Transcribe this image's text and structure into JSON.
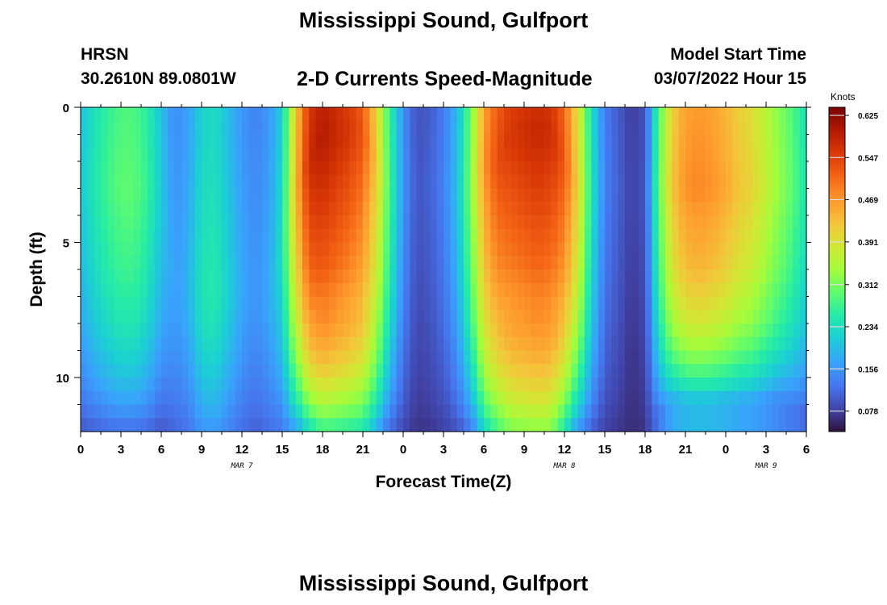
{
  "title": "Mississippi Sound, Gulfport",
  "footer_title": "Mississippi Sound, Gulfport",
  "station": "HRSN",
  "coordinates": "30.2610N  89.0801W",
  "model_start_label": "Model Start Time",
  "model_start_value": "03/07/2022 Hour 15",
  "chart_data": {
    "type": "heatmap",
    "title": "2-D Currents Speed-Magnitude",
    "xlabel": "Forecast Time(Z)",
    "ylabel": "Depth (ft)",
    "colorbar_label": "Knots",
    "x_range_hours": [
      0,
      54
    ],
    "y_range_ft": [
      0,
      12
    ],
    "x_tick_hours": [
      0,
      3,
      6,
      9,
      12,
      15,
      18,
      21,
      24,
      27,
      30,
      33,
      36,
      39,
      42,
      45,
      48,
      51,
      54
    ],
    "x_tick_labels": [
      "0",
      "3",
      "6",
      "9",
      "12",
      "15",
      "18",
      "21",
      "0",
      "3",
      "6",
      "9",
      "12",
      "15",
      "18",
      "21",
      "0",
      "3",
      "6"
    ],
    "y_tick_values": [
      0,
      5,
      10
    ],
    "y_tick_labels": [
      "0",
      "5",
      "10"
    ],
    "date_labels": [
      {
        "hour": 12,
        "text": "MAR 7"
      },
      {
        "hour": 36,
        "text": "MAR 8"
      },
      {
        "hour": 51,
        "text": "MAR 9"
      }
    ],
    "colorbar_range": [
      0.04,
      0.64
    ],
    "colorbar_ticks": [
      "0.625",
      "0.547",
      "0.469",
      "0.391",
      "0.312",
      "0.234",
      "0.156",
      "0.078"
    ],
    "colorbar_tick_values": [
      0.625,
      0.547,
      0.469,
      0.391,
      0.312,
      0.234,
      0.156,
      0.078
    ],
    "surface_speed_knots_by_hour": [
      0.21,
      0.25,
      0.28,
      0.3,
      0.3,
      0.27,
      0.21,
      0.17,
      0.19,
      0.25,
      0.26,
      0.22,
      0.18,
      0.16,
      0.18,
      0.24,
      0.45,
      0.58,
      0.6,
      0.58,
      0.56,
      0.53,
      0.43,
      0.28,
      0.16,
      0.1,
      0.11,
      0.14,
      0.2,
      0.32,
      0.48,
      0.54,
      0.56,
      0.57,
      0.58,
      0.57,
      0.53,
      0.42,
      0.25,
      0.14,
      0.11,
      0.08,
      0.1,
      0.3,
      0.44,
      0.49,
      0.5,
      0.49,
      0.47,
      0.44,
      0.42,
      0.38,
      0.34,
      0.3,
      0.25
    ],
    "peak_depth_ft_by_hour": [
      3,
      3,
      3,
      3,
      3,
      3,
      3,
      7,
      7,
      7,
      7,
      7,
      7,
      7,
      7,
      5,
      3,
      2,
      1,
      1,
      1,
      1,
      2,
      3,
      3,
      3,
      3,
      3,
      3,
      3,
      2,
      2,
      1,
      1,
      1,
      1,
      2,
      3,
      3,
      3,
      3,
      3,
      3,
      3,
      3,
      3,
      3,
      3,
      3,
      3,
      3,
      3,
      3,
      3,
      3
    ],
    "depth_taper": [
      [
        0,
        1.0
      ],
      [
        6,
        0.95
      ],
      [
        8,
        0.88
      ],
      [
        9,
        0.8
      ],
      [
        10,
        0.68
      ],
      [
        11,
        0.52
      ],
      [
        12,
        0.3
      ]
    ],
    "lower_taper_by_hour": [
      0.5,
      0.5,
      0.5,
      0.5,
      0.5,
      0.5,
      0.5,
      0.3,
      0.3,
      0.3,
      0.3,
      0.3,
      0.3,
      0.3,
      0.3,
      0.4,
      0.5,
      0.45,
      0.4,
      0.4,
      0.4,
      0.4,
      0.45,
      0.5,
      0.5,
      0.5,
      0.5,
      0.5,
      0.5,
      0.5,
      0.4,
      0.35,
      0.3,
      0.3,
      0.3,
      0.3,
      0.4,
      0.5,
      0.5,
      0.5,
      0.5,
      0.5,
      0.5,
      0.6,
      0.7,
      0.7,
      0.7,
      0.7,
      0.7,
      0.7,
      0.7,
      0.7,
      0.7,
      0.65,
      0.6
    ]
  }
}
